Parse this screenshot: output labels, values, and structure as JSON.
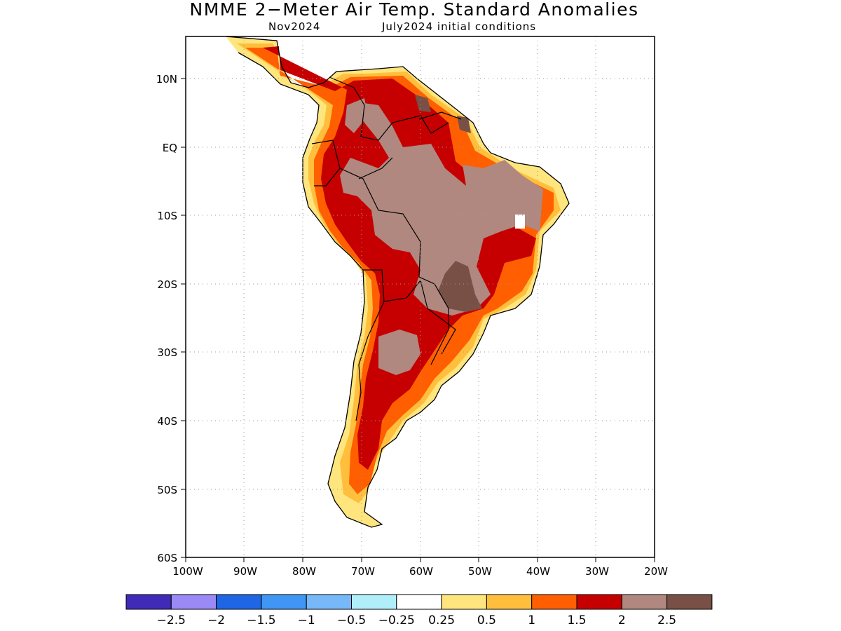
{
  "title": "NMME 2−Meter Air Temp. Standard Anomalies",
  "subtitle_left": "Nov2024",
  "subtitle_right": "July2024 initial conditions",
  "lat_ticks": [
    "10N",
    "EQ",
    "10S",
    "20S",
    "30S",
    "40S",
    "50S",
    "60S"
  ],
  "lon_ticks": [
    "100W",
    "90W",
    "80W",
    "70W",
    "60W",
    "50W",
    "40W",
    "30W",
    "20W"
  ],
  "colorbar": {
    "colors": [
      "#3f2bb7",
      "#9b89f5",
      "#1f66e5",
      "#3f96f4",
      "#77b8f8",
      "#b0eefa",
      "#ffffff",
      "#ffe57e",
      "#ffbf3c",
      "#ff5f00",
      "#c60000",
      "#b08880",
      "#785046"
    ],
    "labels": [
      "−2.5",
      "−2",
      "−1.5",
      "−1",
      "−0.5",
      "−0.25",
      "0.25",
      "0.5",
      "1",
      "1.5",
      "2",
      "2.5"
    ]
  }
}
